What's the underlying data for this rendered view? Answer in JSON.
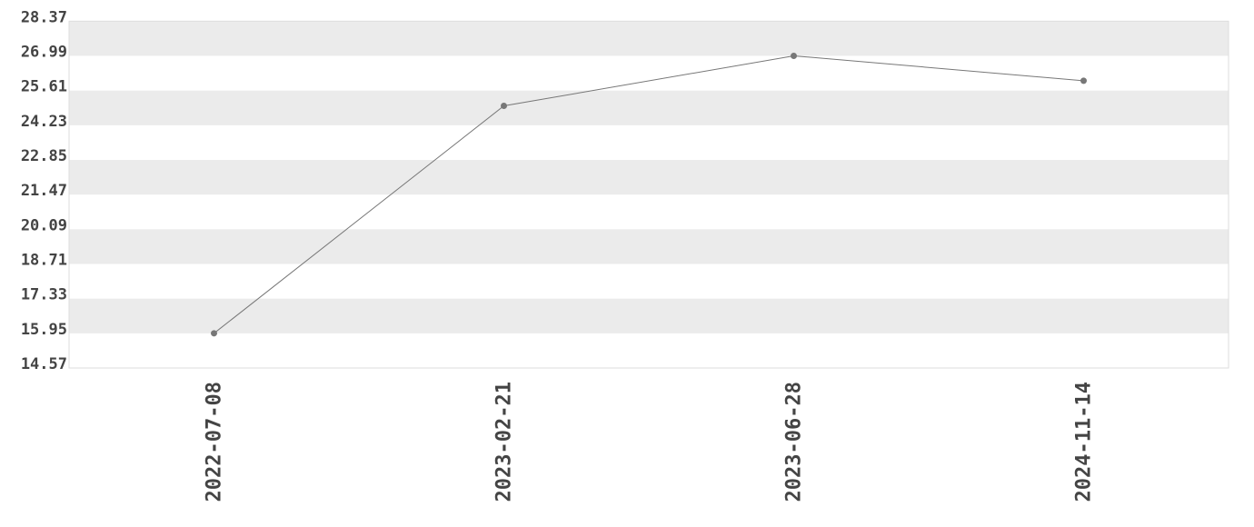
{
  "chart_data": {
    "type": "line",
    "title": "",
    "xlabel": "",
    "ylabel": "",
    "categories": [
      "2022-07-08",
      "2023-02-21",
      "2023-06-28",
      "2024-11-14"
    ],
    "values": [
      15.95,
      25.0,
      26.99,
      26.0
    ],
    "ylim": [
      14.57,
      28.37
    ],
    "y_ticks": [
      "14.57",
      "15.95",
      "17.33",
      "18.71",
      "20.09",
      "21.47",
      "22.85",
      "24.23",
      "25.61",
      "26.99",
      "28.37"
    ],
    "grid": "alternating horizontal bands",
    "legend": "none",
    "colors": {
      "line": "#777777",
      "marker": "#777777",
      "band": "#ebebeb",
      "border": "#dddddd",
      "text": "#444444"
    }
  }
}
